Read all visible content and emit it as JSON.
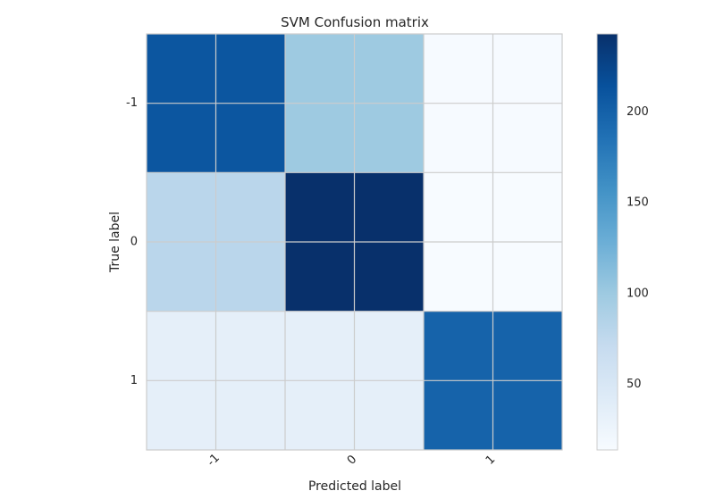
{
  "chart_data": {
    "type": "heatmap",
    "title": "SVM Confusion matrix",
    "xlabel": "Predicted label",
    "ylabel": "True label",
    "x_categories": [
      "-1",
      "0",
      "1"
    ],
    "y_categories": [
      "-1",
      "0",
      "1"
    ],
    "values": [
      [
        210,
        100,
        15
      ],
      [
        80,
        243,
        14
      ],
      [
        35,
        35,
        198
      ]
    ],
    "colorbar": {
      "range": [
        14,
        243
      ],
      "ticks": [
        50,
        100,
        150,
        200
      ],
      "colormap": "Blues"
    },
    "grid": true
  }
}
